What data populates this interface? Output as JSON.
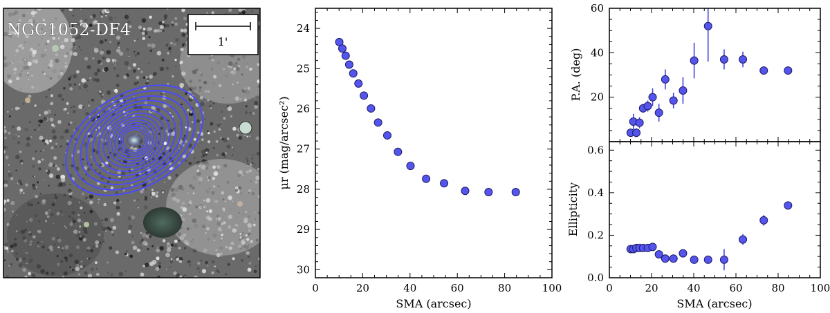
{
  "image_panel": {
    "label": "NGC1052-DF4",
    "scale_bar_label": "1'",
    "background_color": "#6a6a6a",
    "ellipse_color": "#4a4aff"
  },
  "colors": {
    "marker": "#5555ee",
    "marker_edge": "#1a1a66",
    "errorbar": "#4444dd"
  },
  "chart_data": [
    {
      "id": "surface_brightness",
      "type": "scatter",
      "xlabel": "SMA (arcsec)",
      "ylabel": "μr (mag/arcsec²)",
      "xlim": [
        0,
        100
      ],
      "ylim": [
        30.2,
        23.5
      ],
      "x_ticks": [
        0,
        20,
        40,
        60,
        80,
        100
      ],
      "x_tick_labels": [
        "0",
        "20",
        "40",
        "60",
        "80",
        "100"
      ],
      "y_ticks": [
        24,
        25,
        26,
        27,
        28,
        29,
        30
      ],
      "y_tick_labels": [
        "24",
        "25",
        "26",
        "27",
        "28",
        "29",
        "30"
      ],
      "x": [
        10.1,
        11.4,
        12.8,
        14.3,
        16.0,
        18.2,
        20.5,
        23.5,
        26.5,
        30.4,
        34.9,
        40.2,
        46.8,
        54.4,
        63.3,
        73.2,
        84.7
      ],
      "y": [
        24.34,
        24.5,
        24.68,
        24.9,
        25.12,
        25.37,
        25.67,
        25.99,
        26.34,
        26.66,
        27.07,
        27.42,
        27.74,
        27.85,
        28.04,
        28.07,
        28.07
      ]
    },
    {
      "id": "position_angle",
      "type": "scatter",
      "xlabel": "",
      "ylabel": "P.A. (deg)",
      "xlim": [
        0,
        100
      ],
      "ylim": [
        0,
        60
      ],
      "y_ticks": [
        20,
        40,
        60
      ],
      "y_tick_labels": [
        "20",
        "40",
        "60"
      ],
      "x": [
        10.1,
        11.4,
        12.8,
        14.3,
        16.0,
        18.2,
        20.5,
        23.5,
        26.5,
        30.4,
        34.9,
        40.2,
        46.8,
        54.4,
        63.3,
        73.2,
        84.7
      ],
      "y": [
        4,
        9,
        4,
        8.5,
        15,
        16,
        20,
        13,
        28,
        18.5,
        23,
        36.5,
        52,
        37,
        37,
        32,
        32
      ],
      "yerr": [
        1.5,
        3.5,
        2,
        2.5,
        2,
        2.5,
        4,
        4,
        4.5,
        3.5,
        6,
        8,
        16,
        4.5,
        3.5,
        1.5,
        1.5
      ]
    },
    {
      "id": "ellipticity",
      "type": "scatter",
      "xlabel": "SMA (arcsec)",
      "ylabel": "Ellipticity",
      "xlim": [
        0,
        100
      ],
      "ylim": [
        0,
        0.64
      ],
      "x_ticks": [
        0,
        20,
        40,
        60,
        80,
        100
      ],
      "x_tick_labels": [
        "0",
        "20",
        "40",
        "60",
        "80",
        "100"
      ],
      "y_ticks": [
        0,
        0.2,
        0.4,
        0.6
      ],
      "y_tick_labels": [
        "0.0",
        "0.2",
        "0.4",
        "0.6"
      ],
      "x": [
        10.1,
        11.4,
        12.8,
        14.3,
        16.0,
        18.2,
        20.5,
        23.5,
        26.5,
        30.4,
        34.9,
        40.2,
        46.8,
        54.4,
        63.3,
        73.2,
        84.7
      ],
      "y": [
        0.135,
        0.135,
        0.14,
        0.14,
        0.14,
        0.14,
        0.145,
        0.11,
        0.09,
        0.09,
        0.115,
        0.085,
        0.085,
        0.085,
        0.18,
        0.27,
        0.34
      ],
      "yerr": [
        0.01,
        0.01,
        0.01,
        0.01,
        0.01,
        0.01,
        0.01,
        0.01,
        0.01,
        0.01,
        0.012,
        0.015,
        0.015,
        0.05,
        0.025,
        0.025,
        0.015
      ]
    }
  ]
}
